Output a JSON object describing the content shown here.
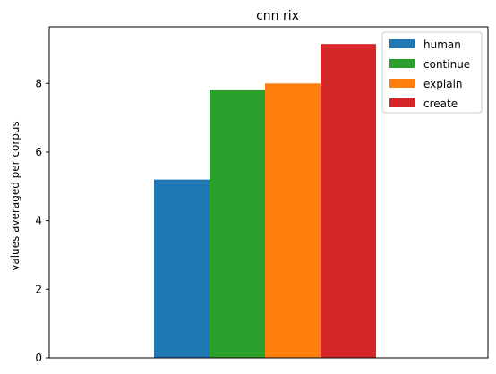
{
  "chart_data": {
    "type": "bar",
    "title": "cnn rix",
    "xlabel": "",
    "ylabel": "values averaged per corpus",
    "ylim": [
      0,
      9.65
    ],
    "yticks": [
      0,
      2,
      4,
      6,
      8
    ],
    "grid": false,
    "legend_position": "top-right",
    "categories": [
      ""
    ],
    "series": [
      {
        "name": "human",
        "color": "#1f77b4",
        "values": [
          5.2
        ]
      },
      {
        "name": "continue",
        "color": "#2ca02c",
        "values": [
          7.8
        ]
      },
      {
        "name": "explain",
        "color": "#ff7f0e",
        "values": [
          8.0
        ]
      },
      {
        "name": "create",
        "color": "#d62728",
        "values": [
          9.15
        ]
      }
    ]
  }
}
